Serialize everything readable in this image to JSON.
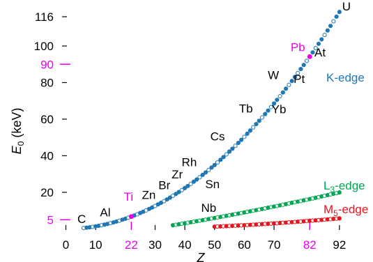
{
  "chart_data": {
    "type": "scatter",
    "xlabel": "Z",
    "ylabel": "E",
    "ylabel_sub": "0",
    "ylabel_unit": " (keV)",
    "xlim": [
      0,
      95
    ],
    "ylim": [
      0,
      118
    ],
    "x_ticks": [
      {
        "value": 0,
        "label": "0",
        "highlight": false
      },
      {
        "value": 10,
        "label": "10",
        "highlight": false
      },
      {
        "value": 22,
        "label": "22",
        "highlight": true
      },
      {
        "value": 30,
        "label": "30",
        "highlight": false
      },
      {
        "value": 40,
        "label": "40",
        "highlight": false
      },
      {
        "value": 50,
        "label": "50",
        "highlight": false
      },
      {
        "value": 60,
        "label": "60",
        "highlight": false
      },
      {
        "value": 70,
        "label": "70",
        "highlight": false
      },
      {
        "value": 82,
        "label": "82",
        "highlight": true
      },
      {
        "value": 92,
        "label": "92",
        "highlight": false
      }
    ],
    "y_ticks": [
      {
        "value": 5,
        "label": "5",
        "highlight": true
      },
      {
        "value": 20,
        "label": "20",
        "highlight": false
      },
      {
        "value": 40,
        "label": "40",
        "highlight": false
      },
      {
        "value": 60,
        "label": "60",
        "highlight": false
      },
      {
        "value": 80,
        "label": "80",
        "highlight": false
      },
      {
        "value": 90,
        "label": "90",
        "highlight": true
      },
      {
        "value": 100,
        "label": "100",
        "highlight": false
      },
      {
        "value": 116,
        "label": "116",
        "highlight": false
      }
    ],
    "series": [
      {
        "name": "K-edge",
        "color": "#1f77b4",
        "z_range": [
          6,
          92
        ]
      },
      {
        "name": "L3-edge",
        "label_main": "L",
        "label_sub": "3",
        "label_tail": "-edge",
        "color": "#00a651",
        "z_range": [
          36,
          92
        ]
      },
      {
        "name": "M5-edge",
        "label_main": "M",
        "label_sub": "5",
        "label_tail": "-edge",
        "color": "#e8141c",
        "z_range": [
          50,
          92
        ]
      }
    ],
    "highlight_points": [
      {
        "element": "Ti",
        "z": 22,
        "e": 4.97
      },
      {
        "element": "Pb",
        "z": 82,
        "e": 88.0
      }
    ],
    "element_labels": [
      {
        "text": "C",
        "z": 6,
        "e": 0.28,
        "highlight": false
      },
      {
        "text": "Al",
        "z": 13,
        "e": 1.56,
        "highlight": false
      },
      {
        "text": "Ti",
        "z": 22,
        "e": 4.97,
        "highlight": true
      },
      {
        "text": "Zn",
        "z": 30,
        "e": 9.66,
        "highlight": false
      },
      {
        "text": "Br",
        "z": 35,
        "e": 13.47,
        "highlight": false
      },
      {
        "text": "Zr",
        "z": 40,
        "e": 18.0,
        "highlight": false
      },
      {
        "text": "Rh",
        "z": 45,
        "e": 23.22,
        "highlight": false
      },
      {
        "text": "Sn",
        "z": 50,
        "e": 29.2,
        "highlight": false
      },
      {
        "text": "Cs",
        "z": 55,
        "e": 35.98,
        "highlight": false
      },
      {
        "text": "Nb",
        "z": 41,
        "e": 18.99,
        "highlight": false
      },
      {
        "text": "Tb",
        "z": 65,
        "e": 51.99,
        "highlight": false
      },
      {
        "text": "Yb",
        "z": 70,
        "e": 61.33,
        "highlight": false
      },
      {
        "text": "W",
        "z": 74,
        "e": 69.53,
        "highlight": false
      },
      {
        "text": "Pt",
        "z": 78,
        "e": 78.39,
        "highlight": false
      },
      {
        "text": "Pb",
        "z": 82,
        "e": 88.0,
        "highlight": true
      },
      {
        "text": "At",
        "z": 85,
        "e": 95.73,
        "highlight": false
      },
      {
        "text": "U",
        "z": 92,
        "e": 115.6,
        "highlight": false
      }
    ]
  }
}
